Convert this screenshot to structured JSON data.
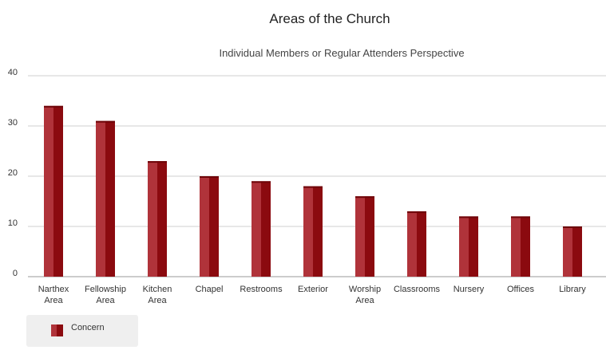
{
  "chart_data": {
    "type": "bar",
    "title": "Areas of the Church",
    "subtitle": "Individual Members or Regular Attenders Perspective",
    "xlabel": "",
    "ylabel": "",
    "ylim": [
      0,
      40
    ],
    "yticks": [
      0,
      10,
      20,
      30,
      40
    ],
    "grid": true,
    "legend_position": "bottom-left",
    "categories": [
      [
        "Narthex",
        "Area"
      ],
      [
        "Fellowship",
        "Area"
      ],
      [
        "Kitchen",
        "Area"
      ],
      [
        "Chapel"
      ],
      [
        "Restrooms"
      ],
      [
        "Exterior"
      ],
      [
        "Worship",
        "Area"
      ],
      [
        "Classrooms"
      ],
      [
        "Nursery"
      ],
      [
        "Offices"
      ],
      [
        "Library"
      ]
    ],
    "series": [
      {
        "name": "Concern",
        "color": "#8b0a0f",
        "highlight": "#b0333a",
        "values": [
          34,
          31,
          23,
          20,
          19,
          18,
          16,
          13,
          12,
          12,
          10
        ]
      }
    ]
  }
}
